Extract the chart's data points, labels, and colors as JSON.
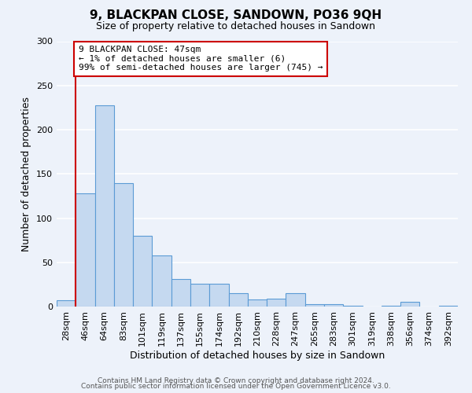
{
  "title": "9, BLACKPAN CLOSE, SANDOWN, PO36 9QH",
  "subtitle": "Size of property relative to detached houses in Sandown",
  "xlabel": "Distribution of detached houses by size in Sandown",
  "ylabel": "Number of detached properties",
  "bin_labels": [
    "28sqm",
    "46sqm",
    "64sqm",
    "83sqm",
    "101sqm",
    "119sqm",
    "137sqm",
    "155sqm",
    "174sqm",
    "192sqm",
    "210sqm",
    "228sqm",
    "247sqm",
    "265sqm",
    "283sqm",
    "301sqm",
    "319sqm",
    "338sqm",
    "356sqm",
    "374sqm",
    "392sqm"
  ],
  "bar_values": [
    7,
    128,
    228,
    140,
    80,
    58,
    31,
    26,
    26,
    15,
    8,
    9,
    15,
    3,
    3,
    1,
    0,
    1,
    5,
    0,
    1
  ],
  "bar_color": "#c5d9f0",
  "bar_edge_color": "#5b9bd5",
  "ylim": [
    0,
    300
  ],
  "yticks": [
    0,
    50,
    100,
    150,
    200,
    250,
    300
  ],
  "vline_color": "#cc0000",
  "annotation_text": "9 BLACKPAN CLOSE: 47sqm\n← 1% of detached houses are smaller (6)\n99% of semi-detached houses are larger (745) →",
  "annotation_box_color": "#ffffff",
  "annotation_box_edge": "#cc0000",
  "footer_line1": "Contains HM Land Registry data © Crown copyright and database right 2024.",
  "footer_line2": "Contains public sector information licensed under the Open Government Licence v3.0.",
  "background_color": "#edf2fa",
  "grid_color": "#ffffff",
  "title_fontsize": 11,
  "subtitle_fontsize": 9,
  "ylabel_fontsize": 9,
  "xlabel_fontsize": 9,
  "tick_fontsize": 8,
  "footer_fontsize": 6.5
}
